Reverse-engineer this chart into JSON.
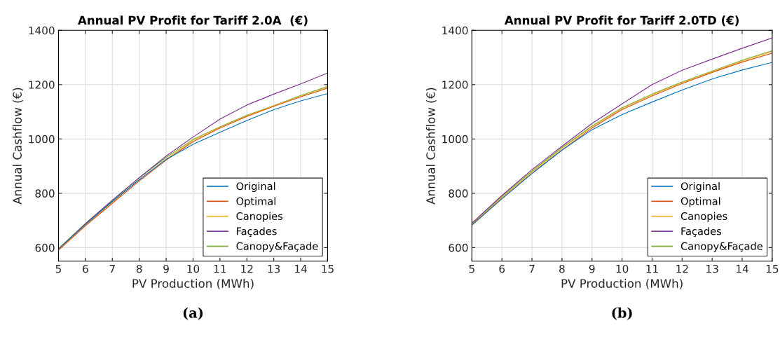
{
  "chart_data": [
    {
      "type": "line",
      "title": "Annual PV Profit for Tariff 2.0A  (€)",
      "xlabel": "PV Production (MWh)",
      "ylabel": "Annual Cashflow (€)",
      "x": [
        5,
        6,
        7,
        8,
        9,
        10,
        11,
        12,
        13,
        14,
        15
      ],
      "xlim": [
        5,
        15
      ],
      "xticks": [
        5,
        6,
        7,
        8,
        9,
        10,
        11,
        12,
        13,
        14,
        15
      ],
      "ylim": [
        550,
        1400
      ],
      "yticks": [
        600,
        800,
        1000,
        1200,
        1400
      ],
      "grid": true,
      "legend": "bottom right",
      "marker": "none",
      "line_style": "solid",
      "annotations": [
        "(a)"
      ],
      "series": [
        {
          "name": "Original",
          "color": "#0072bd",
          "values": [
            595,
            685,
            770,
            850,
            925,
            980,
            1025,
            1068,
            1108,
            1140,
            1167
          ]
        },
        {
          "name": "Optimal",
          "color": "#d95319",
          "values": [
            590,
            680,
            763,
            845,
            922,
            990,
            1040,
            1083,
            1120,
            1155,
            1187
          ]
        },
        {
          "name": "Canopies",
          "color": "#edb120",
          "values": [
            593,
            683,
            767,
            850,
            925,
            995,
            1043,
            1085,
            1122,
            1157,
            1190
          ]
        },
        {
          "name": "Façades",
          "color": "#7e2f8e",
          "values": [
            595,
            688,
            775,
            857,
            937,
            1007,
            1073,
            1125,
            1165,
            1203,
            1243
          ]
        },
        {
          "name": "Canopy&Façade",
          "color": "#77ac30",
          "values": [
            597,
            688,
            773,
            857,
            932,
            998,
            1045,
            1087,
            1123,
            1160,
            1193
          ]
        }
      ]
    },
    {
      "type": "line",
      "title": "Annual PV Profit for Tariff 2.0TD (€)",
      "xlabel": "PV Production (MWh)",
      "ylabel": "Annual Cashflow (€)",
      "x": [
        5,
        6,
        7,
        8,
        9,
        10,
        11,
        12,
        13,
        14,
        15
      ],
      "xlim": [
        5,
        15
      ],
      "xticks": [
        5,
        6,
        7,
        8,
        9,
        10,
        11,
        12,
        13,
        14,
        15
      ],
      "ylim": [
        550,
        1400
      ],
      "yticks": [
        600,
        800,
        1000,
        1200,
        1400
      ],
      "grid": true,
      "legend": "bottom right",
      "marker": "none",
      "line_style": "solid",
      "annotations": [
        "(b)"
      ],
      "series": [
        {
          "name": "Original",
          "color": "#0072bd",
          "values": [
            683,
            780,
            873,
            959,
            1034,
            1090,
            1136,
            1180,
            1221,
            1254,
            1282
          ]
        },
        {
          "name": "Optimal",
          "color": "#d95319",
          "values": [
            683,
            780,
            873,
            959,
            1040,
            1108,
            1158,
            1204,
            1245,
            1283,
            1316
          ]
        },
        {
          "name": "Canopies",
          "color": "#edb120",
          "values": [
            686,
            784,
            878,
            965,
            1045,
            1112,
            1163,
            1207,
            1248,
            1287,
            1322
          ]
        },
        {
          "name": "Façades",
          "color": "#7e2f8e",
          "values": [
            690,
            792,
            887,
            973,
            1057,
            1129,
            1200,
            1253,
            1294,
            1334,
            1372
          ]
        },
        {
          "name": "Canopy&Façade",
          "color": "#77ac30",
          "values": [
            688,
            788,
            882,
            968,
            1048,
            1115,
            1165,
            1210,
            1250,
            1290,
            1325
          ]
        }
      ]
    }
  ]
}
